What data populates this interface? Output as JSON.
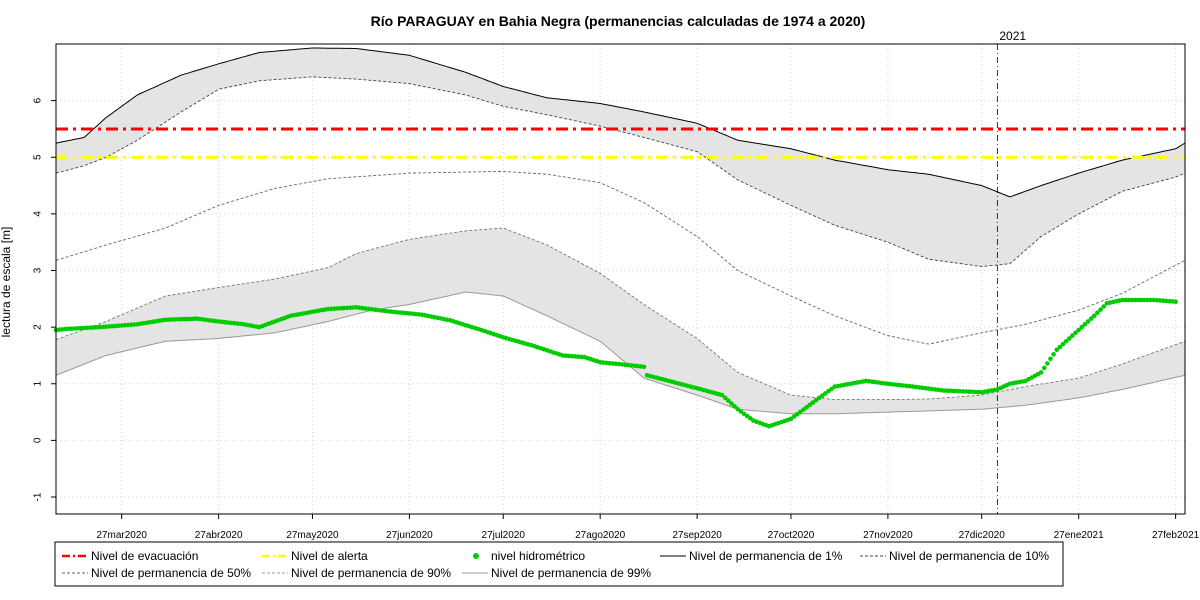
{
  "chart_data": {
    "type": "line",
    "title": "Río PARAGUAY en Bahia Negra (permanencias calculadas de 1974 a 2020)",
    "xlabel": "",
    "ylabel": "lectura de escala [m]",
    "ylim": [
      -1.3,
      7.0
    ],
    "xlim": [
      "2020-03-06",
      "2021-03-02"
    ],
    "grid": true,
    "year_marker": {
      "date": "2021-01-01",
      "label": "2021"
    },
    "x_ticks": [
      {
        "date": "2020-03-27",
        "label": "27mar2020"
      },
      {
        "date": "2020-04-27",
        "label": "27abr2020"
      },
      {
        "date": "2020-05-27",
        "label": "27may2020"
      },
      {
        "date": "2020-06-27",
        "label": "27jun2020"
      },
      {
        "date": "2020-07-27",
        "label": "27jul2020"
      },
      {
        "date": "2020-08-27",
        "label": "27ago2020"
      },
      {
        "date": "2020-09-27",
        "label": "27sep2020"
      },
      {
        "date": "2020-10-27",
        "label": "27oct2020"
      },
      {
        "date": "2020-11-27",
        "label": "27nov2020"
      },
      {
        "date": "2020-12-27",
        "label": "27dic2020"
      },
      {
        "date": "2021-01-27",
        "label": "27ene2021"
      },
      {
        "date": "2021-02-27",
        "label": "27feb2021"
      }
    ],
    "y_ticks": [
      -1,
      0,
      1,
      2,
      3,
      4,
      5,
      6
    ],
    "hlines": [
      {
        "name": "Nivel de evacuación",
        "y": 5.5,
        "color": "#ff0000"
      },
      {
        "name": "Nivel de alerta",
        "y": 5.0,
        "color": "#ffff00"
      }
    ],
    "permanence_series": [
      {
        "name": "Nivel de permanencia de 1%",
        "style": "solid",
        "color": "#000000",
        "x": [
          "2020-03-06",
          "2020-03-15",
          "2020-03-22",
          "2020-04-01",
          "2020-04-15",
          "2020-04-27",
          "2020-05-10",
          "2020-05-27",
          "2020-06-10",
          "2020-06-27",
          "2020-07-15",
          "2020-07-27",
          "2020-08-10",
          "2020-08-27",
          "2020-09-10",
          "2020-09-27",
          "2020-10-10",
          "2020-10-27",
          "2020-11-10",
          "2020-11-27",
          "2020-12-10",
          "2020-12-27",
          "2021-01-05",
          "2021-01-15",
          "2021-01-27",
          "2021-02-10",
          "2021-02-27",
          "2021-03-02"
        ],
        "y": [
          5.25,
          5.35,
          5.7,
          6.1,
          6.45,
          6.65,
          6.85,
          6.93,
          6.92,
          6.8,
          6.5,
          6.25,
          6.05,
          5.95,
          5.8,
          5.6,
          5.3,
          5.15,
          4.95,
          4.78,
          4.7,
          4.5,
          4.3,
          4.5,
          4.72,
          4.95,
          5.15,
          5.25
        ]
      },
      {
        "name": "Nivel de permanencia de 10%",
        "style": "dashed",
        "color": "#444444",
        "x": [
          "2020-03-06",
          "2020-03-15",
          "2020-03-22",
          "2020-04-01",
          "2020-04-15",
          "2020-04-27",
          "2020-05-10",
          "2020-05-27",
          "2020-06-10",
          "2020-06-27",
          "2020-07-15",
          "2020-07-27",
          "2020-08-10",
          "2020-08-27",
          "2020-09-10",
          "2020-09-27",
          "2020-10-10",
          "2020-10-27",
          "2020-11-10",
          "2020-11-27",
          "2020-12-10",
          "2020-12-27",
          "2021-01-05",
          "2021-01-15",
          "2021-01-27",
          "2021-02-10",
          "2021-02-27",
          "2021-03-02"
        ],
        "y": [
          4.72,
          4.85,
          5.0,
          5.3,
          5.8,
          6.2,
          6.35,
          6.42,
          6.38,
          6.3,
          6.1,
          5.9,
          5.75,
          5.55,
          5.35,
          5.1,
          4.6,
          4.15,
          3.8,
          3.5,
          3.2,
          3.07,
          3.12,
          3.6,
          4.0,
          4.4,
          4.65,
          4.72
        ]
      },
      {
        "name": "Nivel de permanencia de 50%",
        "style": "dashed",
        "color": "#666666",
        "x": [
          "2020-03-06",
          "2020-03-22",
          "2020-04-10",
          "2020-04-27",
          "2020-05-15",
          "2020-06-01",
          "2020-06-27",
          "2020-07-27",
          "2020-08-10",
          "2020-08-27",
          "2020-09-10",
          "2020-09-27",
          "2020-10-10",
          "2020-10-27",
          "2020-11-10",
          "2020-11-27",
          "2020-12-10",
          "2020-12-27",
          "2021-01-10",
          "2021-01-27",
          "2021-02-10",
          "2021-03-02"
        ],
        "y": [
          3.18,
          3.45,
          3.75,
          4.15,
          4.45,
          4.62,
          4.72,
          4.75,
          4.7,
          4.55,
          4.2,
          3.6,
          3.0,
          2.55,
          2.2,
          1.85,
          1.7,
          1.9,
          2.05,
          2.3,
          2.6,
          3.18
        ]
      },
      {
        "name": "Nivel de permanencia de 90%",
        "style": "dashed",
        "color": "#777777",
        "x": [
          "2020-03-06",
          "2020-03-22",
          "2020-04-10",
          "2020-04-27",
          "2020-05-15",
          "2020-06-01",
          "2020-06-10",
          "2020-06-27",
          "2020-07-15",
          "2020-07-27",
          "2020-08-10",
          "2020-08-27",
          "2020-09-10",
          "2020-09-27",
          "2020-10-10",
          "2020-10-27",
          "2020-11-10",
          "2020-11-27",
          "2020-12-10",
          "2020-12-27",
          "2021-01-10",
          "2021-01-27",
          "2021-02-10",
          "2021-03-02"
        ],
        "y": [
          1.78,
          2.1,
          2.55,
          2.7,
          2.85,
          3.05,
          3.3,
          3.55,
          3.7,
          3.75,
          3.45,
          2.95,
          2.4,
          1.8,
          1.2,
          0.8,
          0.72,
          0.72,
          0.73,
          0.8,
          0.95,
          1.1,
          1.35,
          1.75
        ]
      },
      {
        "name": "Nivel de permanencia de 99%",
        "style": "solid",
        "color": "#999999",
        "x": [
          "2020-03-06",
          "2020-03-22",
          "2020-04-10",
          "2020-04-27",
          "2020-05-15",
          "2020-06-01",
          "2020-06-15",
          "2020-06-27",
          "2020-07-15",
          "2020-07-27",
          "2020-08-10",
          "2020-08-27",
          "2020-09-10",
          "2020-09-27",
          "2020-10-10",
          "2020-10-27",
          "2020-11-10",
          "2020-11-27",
          "2020-12-10",
          "2020-12-27",
          "2021-01-10",
          "2021-01-27",
          "2021-02-10",
          "2021-03-02"
        ],
        "y": [
          1.15,
          1.5,
          1.75,
          1.8,
          1.9,
          2.1,
          2.3,
          2.4,
          2.62,
          2.55,
          2.2,
          1.75,
          1.1,
          0.8,
          0.55,
          0.47,
          0.47,
          0.5,
          0.52,
          0.55,
          0.62,
          0.75,
          0.9,
          1.15
        ]
      }
    ],
    "bands": [
      {
        "between": [
          "Nivel de permanencia de 1%",
          "Nivel de permanencia de 10%"
        ],
        "color": "#e4e4e4"
      },
      {
        "between": [
          "Nivel de permanencia de 90%",
          "Nivel de permanencia de 99%"
        ],
        "color": "#e4e4e4"
      }
    ],
    "observed": {
      "name": "nivel hidrométrico",
      "color": "#00cc00",
      "x": [
        "2020-03-06",
        "2020-03-10",
        "2020-03-20",
        "2020-04-01",
        "2020-04-10",
        "2020-04-20",
        "2020-04-27",
        "2020-05-05",
        "2020-05-10",
        "2020-05-20",
        "2020-06-01",
        "2020-06-10",
        "2020-06-20",
        "2020-07-01",
        "2020-07-10",
        "2020-07-20",
        "2020-07-27",
        "2020-08-05",
        "2020-08-15",
        "2020-08-22",
        "2020-08-27",
        "2020-09-05",
        "2020-09-10",
        "2020-09-11",
        "2020-09-18",
        "2020-09-27",
        "2020-10-05",
        "2020-10-10",
        "2020-10-15",
        "2020-10-20",
        "2020-10-27",
        "2020-11-05",
        "2020-11-10",
        "2020-11-20",
        "2020-11-27",
        "2020-12-05",
        "2020-12-15",
        "2020-12-27",
        "2021-01-01",
        "2021-01-05",
        "2021-01-10",
        "2021-01-15",
        "2021-01-20",
        "2021-01-27",
        "2021-02-01",
        "2021-02-05",
        "2021-02-10",
        "2021-02-20",
        "2021-02-27"
      ],
      "y": [
        1.95,
        1.97,
        2.0,
        2.05,
        2.13,
        2.15,
        2.1,
        2.05,
        2.0,
        2.2,
        2.32,
        2.35,
        2.28,
        2.22,
        2.12,
        1.95,
        1.82,
        1.68,
        1.5,
        1.47,
        1.38,
        1.33,
        1.3,
        1.15,
        1.05,
        0.92,
        0.8,
        0.55,
        0.35,
        0.25,
        0.38,
        0.75,
        0.95,
        1.05,
        1.0,
        0.95,
        0.88,
        0.85,
        0.9,
        1.0,
        1.05,
        1.2,
        1.6,
        1.95,
        2.2,
        2.42,
        2.48,
        2.48,
        2.45
      ]
    },
    "legend": {
      "placement": "bottom",
      "rows": [
        [
          {
            "label": "Nivel de evacuación",
            "kind": "dashdot",
            "color": "#ff0000"
          },
          {
            "label": "Nivel de alerta",
            "kind": "dashdot",
            "color": "#ffff00"
          },
          {
            "label": "nivel hidrométrico",
            "kind": "point",
            "color": "#00cc00"
          },
          {
            "label": "Nivel de permanencia de 1%",
            "kind": "solid",
            "color": "#000000"
          },
          {
            "label": "Nivel de permanencia de 10%",
            "kind": "dashed",
            "color": "#444444"
          }
        ],
        [
          {
            "label": "Nivel de permanencia de 50%",
            "kind": "dashed",
            "color": "#666666"
          },
          {
            "label": "Nivel de permanencia de 90%",
            "kind": "dashed",
            "color": "#999999"
          },
          {
            "label": "Nivel de permanencia de 99%",
            "kind": "solid",
            "color": "#999999"
          }
        ]
      ]
    }
  }
}
